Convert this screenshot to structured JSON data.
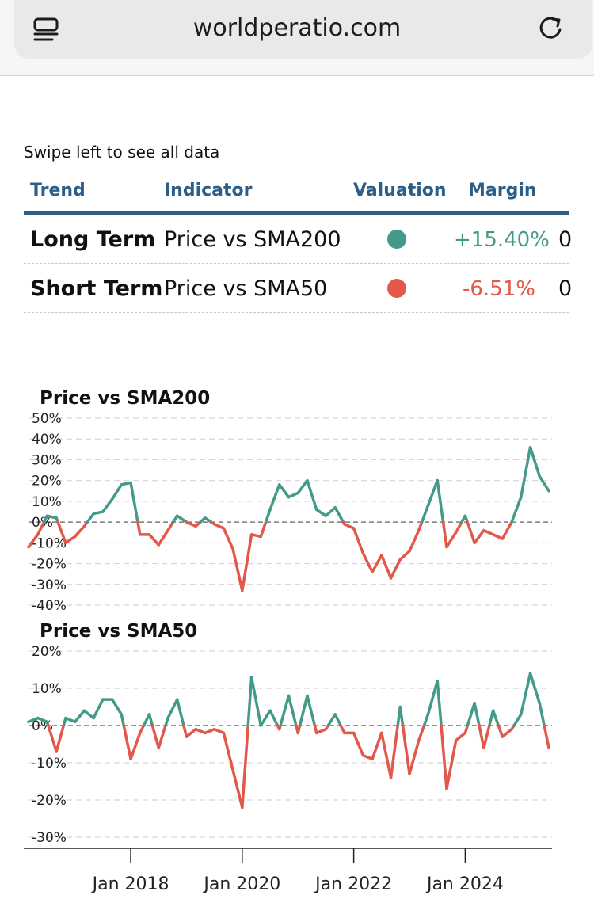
{
  "browser": {
    "url": "worldperatio.com",
    "menu_icon": "reader-icon",
    "reload_icon": "reload-icon"
  },
  "hint": "Swipe left to see all data",
  "table": {
    "headers": [
      "Trend",
      "Indicator",
      "Valuation",
      "Margin"
    ],
    "rows": [
      {
        "trend": "Long Term",
        "indicator": "Price vs SMA200",
        "valuation_color": "#449a8a",
        "margin": "+15.40%",
        "margin_color": "#449a8a",
        "overflow": "0"
      },
      {
        "trend": "Short Term",
        "indicator": "Price vs SMA50",
        "valuation_color": "#e2584a",
        "margin": "-6.51%",
        "margin_color": "#e2584a",
        "overflow": "0"
      }
    ]
  },
  "colors": {
    "positive": "#449a8a",
    "negative": "#e2584a",
    "header": "#2b5f8a"
  },
  "chart_data": [
    {
      "type": "line",
      "title": "Price vs SMA200",
      "ylim": [
        -40,
        50
      ],
      "ytick_labels": [
        "50%",
        "40%",
        "30%",
        "20%",
        "10%",
        "0%",
        "-10%",
        "-20%",
        "-30%",
        "-40%"
      ],
      "ytick_values": [
        50,
        40,
        30,
        20,
        10,
        0,
        -10,
        -20,
        -30,
        -40
      ],
      "x_range": [
        "2016-03",
        "2025-07"
      ],
      "x": [
        "2016-03",
        "2016-05",
        "2016-07",
        "2016-09",
        "2016-11",
        "2017-01",
        "2017-03",
        "2017-05",
        "2017-07",
        "2017-09",
        "2017-11",
        "2018-01",
        "2018-03",
        "2018-05",
        "2018-07",
        "2018-09",
        "2018-11",
        "2019-01",
        "2019-03",
        "2019-05",
        "2019-07",
        "2019-09",
        "2019-11",
        "2020-01",
        "2020-03",
        "2020-05",
        "2020-07",
        "2020-09",
        "2020-11",
        "2021-01",
        "2021-03",
        "2021-05",
        "2021-07",
        "2021-09",
        "2021-11",
        "2022-01",
        "2022-03",
        "2022-05",
        "2022-07",
        "2022-09",
        "2022-11",
        "2023-01",
        "2023-03",
        "2023-05",
        "2023-07",
        "2023-09",
        "2023-11",
        "2024-01",
        "2024-03",
        "2024-05",
        "2024-07",
        "2024-09",
        "2024-11",
        "2025-01",
        "2025-03",
        "2025-05",
        "2025-07"
      ],
      "y": [
        -12,
        -6,
        3,
        2,
        -10,
        -7,
        -2,
        4,
        5,
        11,
        18,
        19,
        -6,
        -6,
        -11,
        -4,
        3,
        0,
        -2,
        2,
        -1,
        -3,
        -13,
        -33,
        -6,
        -7,
        6,
        18,
        12,
        14,
        20,
        6,
        3,
        7,
        -1,
        -3,
        -15,
        -24,
        -16,
        -27,
        -18,
        -14,
        -4,
        8,
        20,
        -12,
        -5,
        3,
        -10,
        -4,
        -6,
        -8,
        0,
        12,
        36,
        22,
        15
      ]
    },
    {
      "type": "line",
      "title": "Price vs SMA50",
      "ylim": [
        -30,
        20
      ],
      "ytick_labels": [
        "20%",
        "10%",
        "0%",
        "-10%",
        "-20%",
        "-30%"
      ],
      "ytick_values": [
        20,
        10,
        0,
        -10,
        -20,
        -30
      ],
      "x_range": [
        "2016-03",
        "2025-07"
      ],
      "x": [
        "2016-03",
        "2016-05",
        "2016-07",
        "2016-09",
        "2016-11",
        "2017-01",
        "2017-03",
        "2017-05",
        "2017-07",
        "2017-09",
        "2017-11",
        "2018-01",
        "2018-03",
        "2018-05",
        "2018-07",
        "2018-09",
        "2018-11",
        "2019-01",
        "2019-03",
        "2019-05",
        "2019-07",
        "2019-09",
        "2019-11",
        "2020-01",
        "2020-03",
        "2020-05",
        "2020-07",
        "2020-09",
        "2020-11",
        "2021-01",
        "2021-03",
        "2021-05",
        "2021-07",
        "2021-09",
        "2021-11",
        "2022-01",
        "2022-03",
        "2022-05",
        "2022-07",
        "2022-09",
        "2022-11",
        "2023-01",
        "2023-03",
        "2023-05",
        "2023-07",
        "2023-09",
        "2023-11",
        "2024-01",
        "2024-03",
        "2024-05",
        "2024-07",
        "2024-09",
        "2024-11",
        "2025-01",
        "2025-03",
        "2025-05",
        "2025-07"
      ],
      "y": [
        1,
        2,
        1,
        -7,
        2,
        1,
        4,
        2,
        7,
        7,
        3,
        -9,
        -2,
        3,
        -6,
        2,
        7,
        -3,
        -1,
        -2,
        -1,
        -2,
        -12,
        -22,
        13,
        0,
        4,
        -1,
        8,
        -2,
        8,
        -2,
        -1,
        3,
        -2,
        -2,
        -8,
        -9,
        -2,
        -14,
        5,
        -13,
        -4,
        3,
        12,
        -17,
        -4,
        -2,
        6,
        -6,
        4,
        -3,
        -1,
        3,
        14,
        6,
        -6
      ]
    }
  ],
  "x_axis": {
    "ticks": [
      "Jan 2018",
      "Jan 2020",
      "Jan 2022",
      "Jan 2024"
    ],
    "tick_values": [
      "2018-01",
      "2020-01",
      "2022-01",
      "2024-01"
    ]
  }
}
